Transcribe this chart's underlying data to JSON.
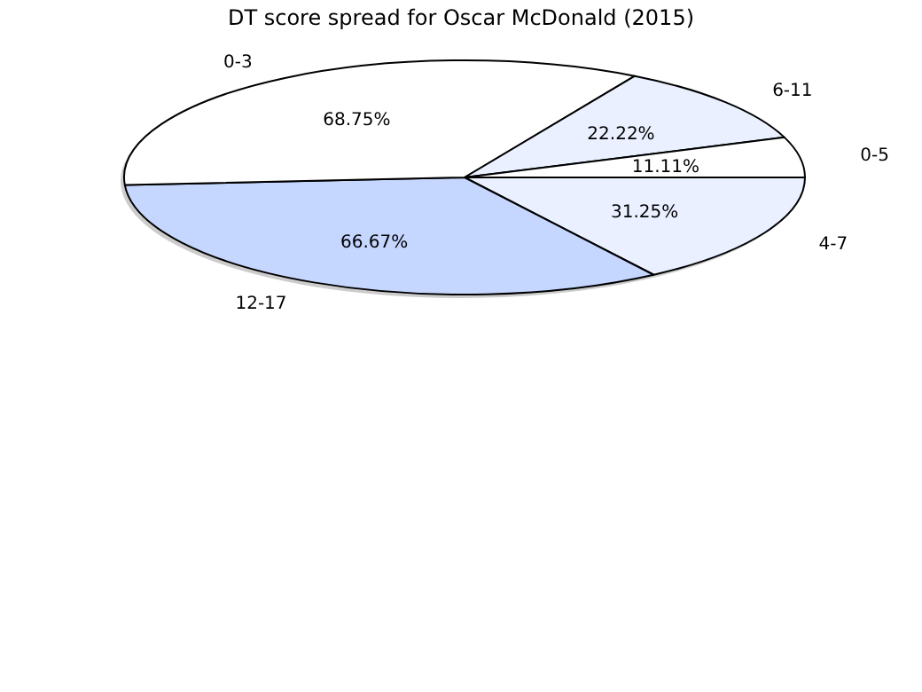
{
  "chart_data": {
    "type": "pie",
    "title": "DT score spread for Oscar McDonald (2015)",
    "categories": [
      "4-7",
      "12-17",
      "0-3",
      "6-11",
      "0-5"
    ],
    "values": [
      31.25,
      66.67,
      68.75,
      22.22,
      11.11
    ],
    "value_labels": [
      "31.25%",
      "66.67%",
      "68.75%",
      "22.22%",
      "11.11%"
    ],
    "colors": [
      "#eaf0ff",
      "#c5d6ff",
      "#ffffff",
      "#eaf0ff",
      "#ffffff"
    ]
  }
}
